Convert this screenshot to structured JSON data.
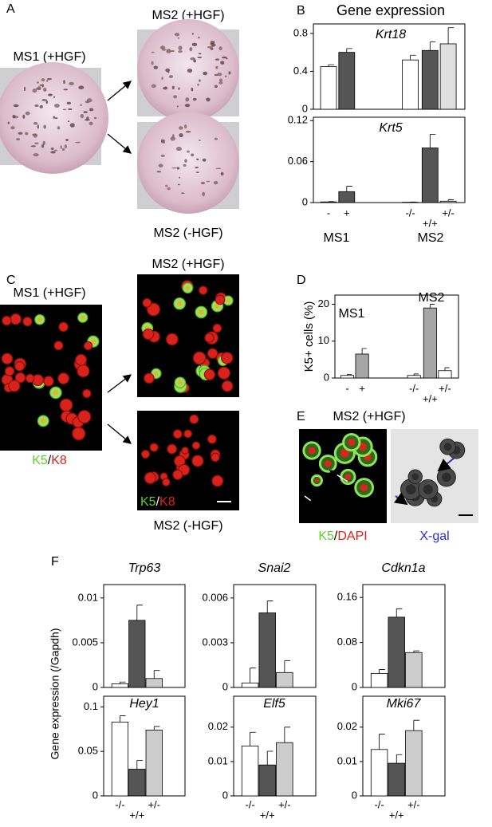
{
  "panel_labels": [
    "A",
    "B",
    "C",
    "D",
    "E",
    "F"
  ],
  "panel_a": {
    "ms1": "MS1 (+HGF)",
    "ms2_plus": "MS2 (+HGF)",
    "ms2_minus": "MS2 (-HGF)"
  },
  "panel_b": {
    "title": "Gene expression"
  },
  "panel_c": {
    "ms1": "MS1 (+HGF)",
    "ms2_plus": "MS2 (+HGF)",
    "ms2_minus": "MS2 (-HGF)",
    "stain_left": [
      "K5",
      "/",
      "K8"
    ],
    "stain_right": [
      "K5",
      "/",
      "K8"
    ]
  },
  "panel_e": {
    "title": "MS2 (+HGF)",
    "stain": [
      "K5",
      "/",
      "DAPI"
    ],
    "xgal": "X-gal"
  },
  "panel_f": {
    "ylabel": "Gene expression (/Gapdh)"
  },
  "chart_data": [
    {
      "type": "bar",
      "title": "Krt18",
      "values": [
        0.45,
        0.6,
        0.52,
        0.62,
        0.69
      ],
      "errors": [
        0.02,
        0.04,
        0.05,
        0.09,
        0.17
      ],
      "colors": [
        "#ffffff",
        "#555555",
        "#ffffff",
        "#555555",
        "#e0e0e0"
      ],
      "ylim": [
        0,
        0.9
      ],
      "yticks": [
        0,
        0.4,
        0.8
      ]
    },
    {
      "type": "bar",
      "title": "Krt5",
      "categories": [
        "-",
        "+",
        "-/-",
        "+/+",
        "+/-"
      ],
      "groups": [
        "MS1",
        "MS2"
      ],
      "values": [
        0.001,
        0.016,
        0.0005,
        0.08,
        0.002
      ],
      "errors": [
        0.0005,
        0.008,
        0.0003,
        0.02,
        0.002
      ],
      "colors": [
        "#ffffff",
        "#555555",
        "#ffffff",
        "#555555",
        "#e0e0e0"
      ],
      "ylim": [
        0,
        0.125
      ],
      "yticks": [
        0,
        0.06,
        0.12
      ]
    },
    {
      "type": "bar",
      "ylabel": "K5+ cells (%)",
      "categories": [
        "-",
        "+",
        "-/-",
        "+/+",
        "+/-"
      ],
      "annotations": [
        "MS1",
        "MS2"
      ],
      "values": [
        0.7,
        6.5,
        0.7,
        19,
        2
      ],
      "errors": [
        0.3,
        1.5,
        0.4,
        1,
        0.8
      ],
      "colors": [
        "#ffffff",
        "#a6a6a6",
        "#ffffff",
        "#a6a6a6",
        "#ffffff"
      ],
      "ylim": [
        0,
        22.5
      ],
      "yticks": [
        0,
        10,
        20
      ]
    },
    {
      "type": "bar",
      "title": "Trp63",
      "values": [
        0.0004,
        0.0075,
        0.001
      ],
      "errors": [
        0.0002,
        0.0017,
        0.0009
      ],
      "colors": [
        "#ffffff",
        "#555555",
        "#cccccc"
      ],
      "ylim": [
        0,
        0.0115
      ],
      "yticks": [
        0,
        0.005,
        0.01
      ]
    },
    {
      "type": "bar",
      "title": "Snai2",
      "values": [
        0.0003,
        0.005,
        0.001
      ],
      "errors": [
        0.001,
        0.0008,
        0.0008
      ],
      "colors": [
        "#ffffff",
        "#555555",
        "#cccccc"
      ],
      "ylim": [
        0,
        0.0069
      ],
      "yticks": [
        0,
        0.003,
        0.006
      ]
    },
    {
      "type": "bar",
      "title": "Cdkn1a",
      "values": [
        0.025,
        0.125,
        0.062
      ],
      "errors": [
        0.007,
        0.015,
        0.003
      ],
      "colors": [
        "#ffffff",
        "#555555",
        "#cccccc"
      ],
      "ylim": [
        0,
        0.183
      ],
      "yticks": [
        0,
        0.08,
        0.16
      ]
    },
    {
      "type": "bar",
      "title": "Hey1",
      "categories": [
        "-/-",
        "+/+",
        "+/-"
      ],
      "values": [
        0.083,
        0.03,
        0.074
      ],
      "errors": [
        0.007,
        0.01,
        0.004
      ],
      "colors": [
        "#ffffff",
        "#555555",
        "#cccccc"
      ],
      "ylim": [
        0,
        0.112
      ],
      "yticks": [
        0,
        0.05,
        0.1
      ]
    },
    {
      "type": "bar",
      "title": "Elf5",
      "categories": [
        "-/-",
        "+/+",
        "+/-"
      ],
      "values": [
        0.0145,
        0.009,
        0.0155
      ],
      "errors": [
        0.004,
        0.004,
        0.0045
      ],
      "colors": [
        "#ffffff",
        "#555555",
        "#cccccc"
      ],
      "ylim": [
        0,
        0.029
      ],
      "yticks": [
        0,
        0.01,
        0.02
      ]
    },
    {
      "type": "bar",
      "title": "Mki67",
      "categories": [
        "-/-",
        "+/+",
        "+/-"
      ],
      "values": [
        0.0135,
        0.0095,
        0.019
      ],
      "errors": [
        0.0045,
        0.0025,
        0.003
      ],
      "colors": [
        "#ffffff",
        "#555555",
        "#cccccc"
      ],
      "ylim": [
        0,
        0.029
      ],
      "yticks": [
        0,
        0.01,
        0.02
      ]
    }
  ]
}
